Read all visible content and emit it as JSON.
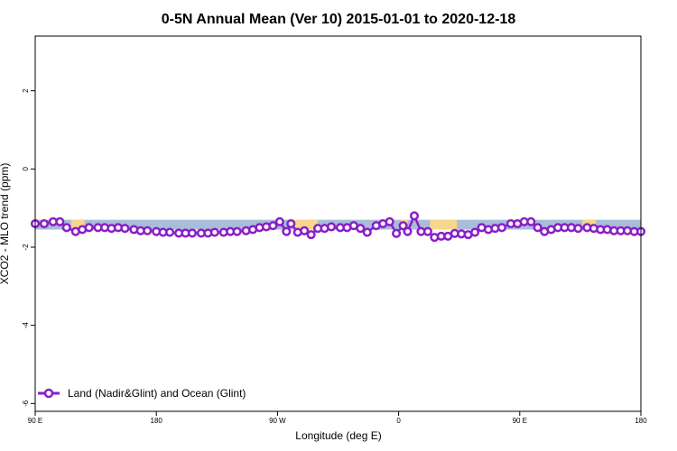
{
  "chart_data": {
    "type": "line",
    "title": "0-5N Annual Mean (Ver 10)   2015-01-01 to 2020-12-18",
    "xlabel": "Longitude (deg E)",
    "ylabel": "XCO2 - MLO trend (ppm)",
    "xlim": [
      -90,
      180
    ],
    "ylim": [
      -6.2,
      3.4
    ],
    "x_ticks": [
      {
        "value": -90,
        "label": "90 E"
      },
      {
        "value": -36,
        "label": "180"
      },
      {
        "value": 18,
        "label": "90 W"
      },
      {
        "value": 72,
        "label": "0"
      },
      {
        "value": 126,
        "label": "90 E"
      },
      {
        "value": 180,
        "label": "180"
      }
    ],
    "y_ticks": [
      {
        "value": 2,
        "label": "2"
      },
      {
        "value": 0,
        "label": "0"
      },
      {
        "value": -2,
        "label": "-2"
      },
      {
        "value": -4,
        "label": "-4"
      },
      {
        "value": -6,
        "label": "-6"
      }
    ],
    "band": {
      "upper": -1.3,
      "lower": -1.55,
      "color": "#a7bdd8",
      "highlight_color": "#f7d78a"
    },
    "band_highlights": [
      [
        -74,
        -68
      ],
      [
        25,
        36
      ],
      [
        73,
        76
      ],
      [
        86,
        98
      ],
      [
        154,
        160
      ]
    ],
    "series": [
      {
        "name": "Land (Nadir&Glint) and Ocean (Glint)",
        "color": "#8a1ec8",
        "x": [
          -90,
          -86,
          -82,
          -79,
          -76,
          -72,
          -69,
          -66,
          -62,
          -59,
          -56,
          -53,
          -50,
          -46,
          -43,
          -40,
          -36,
          -33,
          -30,
          -26,
          -23,
          -20,
          -16,
          -13,
          -10,
          -6,
          -3,
          0,
          4,
          7,
          10,
          13,
          16,
          19,
          22,
          24,
          27,
          30,
          33,
          36,
          39,
          42,
          46,
          49,
          52,
          55,
          58,
          62,
          65,
          68,
          71,
          74,
          76,
          79,
          82,
          85,
          88,
          91,
          94,
          97,
          100,
          103,
          106,
          109,
          112,
          115,
          118,
          122,
          125,
          128,
          131,
          134,
          137,
          140,
          143,
          146,
          149,
          152,
          156,
          159,
          162,
          165,
          168,
          171,
          174,
          177,
          180
        ],
        "y": [
          -1.4,
          -1.4,
          -1.35,
          -1.35,
          -1.5,
          -1.6,
          -1.55,
          -1.5,
          -1.5,
          -1.5,
          -1.52,
          -1.5,
          -1.52,
          -1.55,
          -1.58,
          -1.58,
          -1.6,
          -1.62,
          -1.62,
          -1.64,
          -1.64,
          -1.64,
          -1.64,
          -1.64,
          -1.62,
          -1.62,
          -1.6,
          -1.6,
          -1.58,
          -1.55,
          -1.5,
          -1.48,
          -1.45,
          -1.35,
          -1.6,
          -1.4,
          -1.62,
          -1.58,
          -1.68,
          -1.52,
          -1.52,
          -1.48,
          -1.5,
          -1.5,
          -1.45,
          -1.52,
          -1.62,
          -1.45,
          -1.4,
          -1.35,
          -1.65,
          -1.45,
          -1.6,
          -1.2,
          -1.6,
          -1.6,
          -1.75,
          -1.72,
          -1.72,
          -1.65,
          -1.66,
          -1.68,
          -1.62,
          -1.5,
          -1.55,
          -1.52,
          -1.5,
          -1.4,
          -1.4,
          -1.35,
          -1.35,
          -1.5,
          -1.6,
          -1.55,
          -1.5,
          -1.5,
          -1.5,
          -1.52,
          -1.5,
          -1.52,
          -1.55,
          -1.55,
          -1.58,
          -1.58,
          -1.58,
          -1.6,
          -1.6
        ]
      }
    ],
    "legend": "bottom-left"
  }
}
